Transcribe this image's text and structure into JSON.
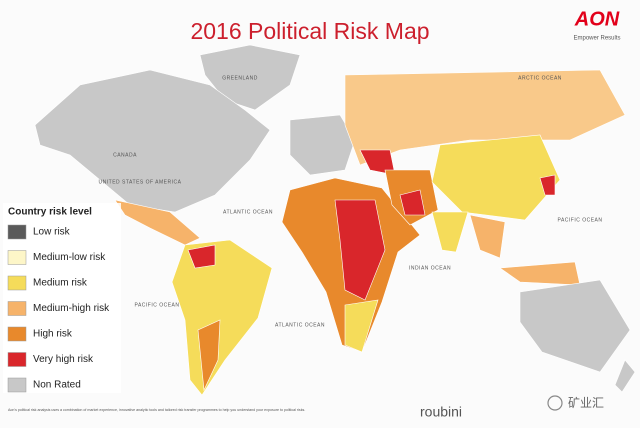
{
  "header": {
    "title": "2016 Political Risk Map",
    "brand": "AON",
    "tagline": "Empower Results"
  },
  "legend": {
    "title": "Country risk level",
    "items": [
      {
        "label": "Low risk",
        "color": "#5a5a5a"
      },
      {
        "label": "Medium-low risk",
        "color": "#fdf6c8"
      },
      {
        "label": "Medium risk",
        "color": "#f5dc5a"
      },
      {
        "label": "Medium-high risk",
        "color": "#f6b36a"
      },
      {
        "label": "High risk",
        "color": "#e8892c"
      },
      {
        "label": "Very high risk",
        "color": "#d9262b"
      },
      {
        "label": "Non Rated",
        "color": "#c8c8c8"
      }
    ]
  },
  "map_labels": [
    "GREENLAND",
    "ARCTIC OCEAN",
    "CANADA",
    "UNITED STATES OF AMERICA",
    "ATLANTIC OCEAN",
    "PACIFIC OCEAN",
    "INDIAN OCEAN",
    "PACIFIC OCEAN",
    "ATLANTIC OCEAN"
  ],
  "footer": {
    "note": "Aon's political risk analysis uses a combination of market experience, innovative analytic tools and tailored risk transfer programmes to help you understand your exposure to political risks.",
    "partner": "roubini",
    "watermark": "矿业汇"
  }
}
